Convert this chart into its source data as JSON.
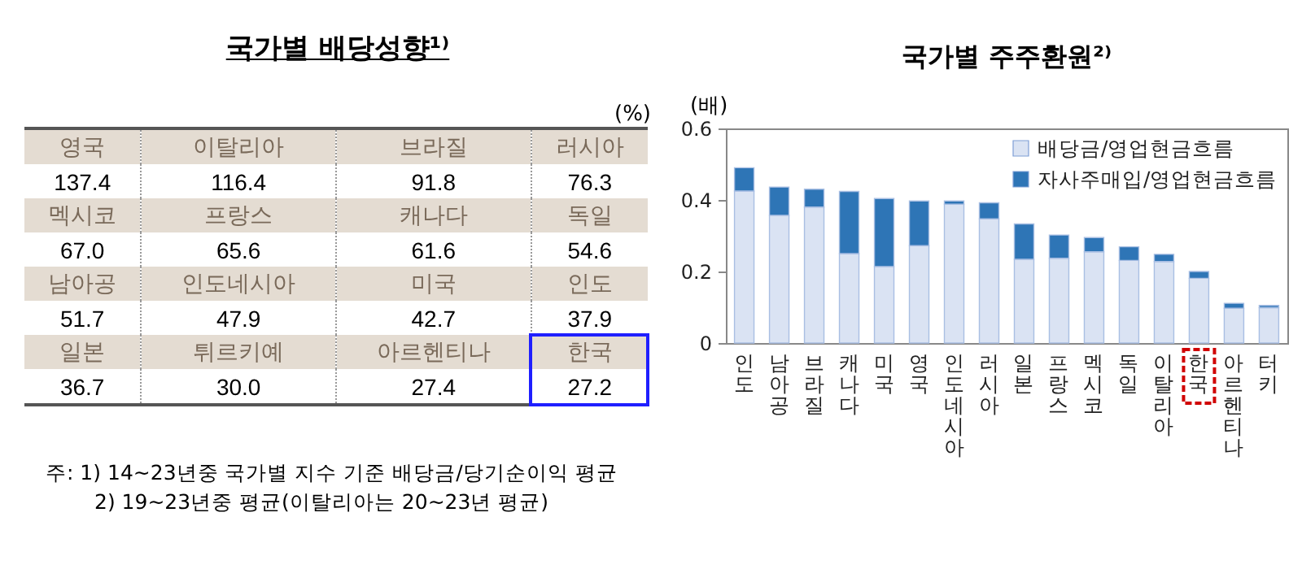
{
  "chart_data": [
    {
      "type": "other",
      "title": "국가별 배당성향¹⁾",
      "ylabel": "(%)",
      "categories": [
        "영국",
        "이탈리아",
        "브라질",
        "러시아",
        "멕시코",
        "프랑스",
        "캐나다",
        "독일",
        "남아공",
        "인도네시아",
        "미국",
        "인도",
        "일본",
        "튀르키예",
        "아르헨티나",
        "한국"
      ],
      "values": [
        137.4,
        116.4,
        91.8,
        76.3,
        67.0,
        65.6,
        61.6,
        54.6,
        51.7,
        47.9,
        42.7,
        37.9,
        36.7,
        30.0,
        27.4,
        27.2
      ],
      "value_labels": [
        "137.4",
        "116.4",
        "91.8",
        "76.3",
        "67.0",
        "65.6",
        "61.6",
        "54.6",
        "51.7",
        "47.9",
        "42.7",
        "37.9",
        "36.7",
        "30.0",
        "27.4",
        "27.2"
      ],
      "annotations": [
        "주: 1) 14~23년중 국가별 지수 기준 배당금/당기순이익 평균",
        "2) 19~23년중 평균(이탈리아는 20~23년 평균)"
      ]
    },
    {
      "type": "bar",
      "stacked": true,
      "title": "국가별 주주환원²⁾",
      "ylabel": "(배)",
      "categories": [
        "인도",
        "남아공",
        "브라질",
        "캐나다",
        "미국",
        "영국",
        "인도네시아",
        "러시아",
        "일본",
        "프랑스",
        "멕시코",
        "독일",
        "이탈리아",
        "한국",
        "아르헨티나",
        "터키"
      ],
      "series": [
        {
          "name": "배당금/영업현금흐름",
          "color": "#dae3f3",
          "values": [
            0.425,
            0.357,
            0.38,
            0.25,
            0.214,
            0.272,
            0.388,
            0.347,
            0.234,
            0.237,
            0.255,
            0.231,
            0.228,
            0.181,
            0.097,
            0.099
          ]
        },
        {
          "name": "자사주매입/영업현금흐름",
          "color": "#2e75b6",
          "values": [
            0.065,
            0.079,
            0.05,
            0.174,
            0.19,
            0.125,
            0.009,
            0.045,
            0.099,
            0.065,
            0.04,
            0.038,
            0.02,
            0.019,
            0.014,
            0.006
          ]
        }
      ],
      "ylim": [
        0,
        0.6
      ],
      "yticks": [
        0,
        0.2,
        0.4,
        0.6
      ],
      "grid": false,
      "legend": "top right"
    }
  ]
}
